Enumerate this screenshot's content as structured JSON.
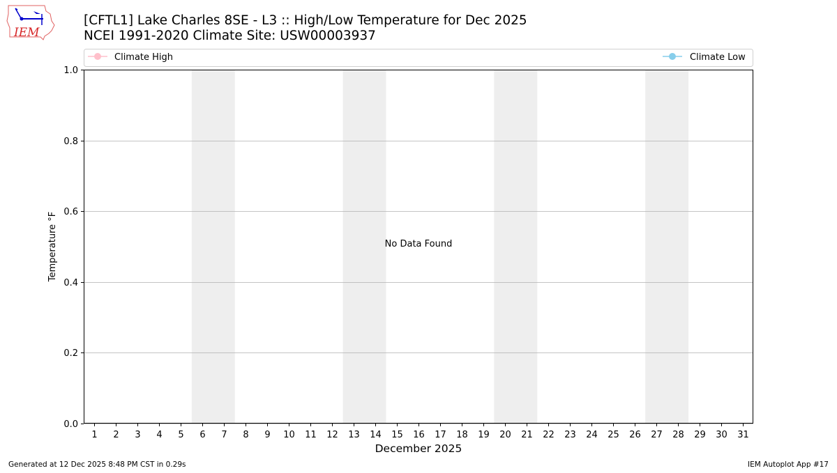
{
  "title_line1": "[CFTL1] Lake Charles 8SE - L3 :: High/Low Temperature for Dec 2025",
  "title_line2": "NCEI 1991-2020 Climate Site: USW00003937",
  "logo_text": "IEM",
  "footer_left": "Generated at 12 Dec 2025 8:48 PM CST in 0.29s",
  "footer_right": "IEM Autoplot App #17",
  "colors": {
    "climate_high": "#ffc0cb",
    "climate_low": "#87ceeb",
    "weekend_shade": "#eeeeee",
    "grid": "#b0b0b0",
    "logo_red": "#d62728",
    "logo_blue": "#0000cc"
  },
  "chart_data": {
    "type": "line",
    "xlabel": "December 2025",
    "ylabel": "Temperature °F",
    "xlim": [
      0.5,
      31.5
    ],
    "ylim": [
      0.0,
      1.0
    ],
    "x_ticks": [
      "1",
      "2",
      "3",
      "4",
      "5",
      "6",
      "7",
      "8",
      "9",
      "10",
      "11",
      "12",
      "13",
      "14",
      "15",
      "16",
      "17",
      "18",
      "19",
      "20",
      "21",
      "22",
      "23",
      "24",
      "25",
      "26",
      "27",
      "28",
      "29",
      "30",
      "31"
    ],
    "y_ticks": [
      "0.0",
      "0.2",
      "0.4",
      "0.6",
      "0.8",
      "1.0"
    ],
    "grid": "horizontal",
    "weekend_shading": [
      [
        5.5,
        7.5
      ],
      [
        12.5,
        14.5
      ],
      [
        19.5,
        21.5
      ],
      [
        26.5,
        28.5
      ]
    ],
    "annotation": "No Data Found",
    "legend": {
      "placement": "top",
      "entries": [
        {
          "name": "Climate High",
          "color": "#ffc0cb"
        },
        {
          "name": "Climate Low",
          "color": "#87ceeb"
        }
      ]
    },
    "series": [
      {
        "name": "Climate High",
        "values": []
      },
      {
        "name": "Climate Low",
        "values": []
      }
    ]
  }
}
